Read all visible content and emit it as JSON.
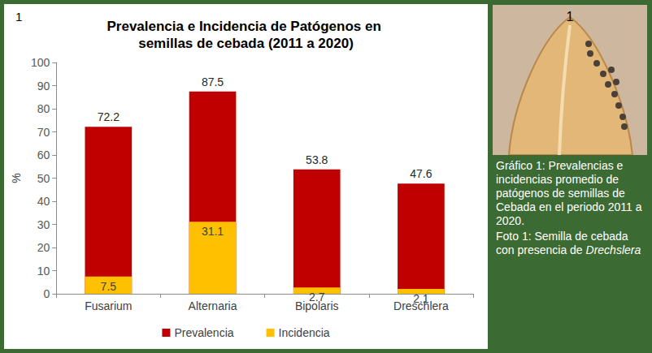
{
  "chart_data": {
    "type": "bar",
    "title": "Prevalencia e Incidencia de Patógenos en semillas de cebada (2011 a 2020)",
    "annotations": [
      "1"
    ],
    "ylabel": "%",
    "categories": [
      "Fusarium",
      "Alternaria",
      "Bipolaris",
      "Dreschlera"
    ],
    "series": [
      {
        "name": "Prevalencia",
        "color": "#c00000",
        "values": [
          72.2,
          87.5,
          53.8,
          47.6
        ]
      },
      {
        "name": "Incidencia",
        "color": "#ffc000",
        "values": [
          7.5,
          31.1,
          2.7,
          2.1
        ]
      }
    ],
    "stacked": false,
    "ylim": [
      0,
      100
    ],
    "yticks": [
      0,
      10,
      20,
      30,
      40,
      50,
      60,
      70,
      80,
      90,
      100
    ],
    "grid": false,
    "legend": "bottom",
    "data_labels": true
  },
  "photo": {
    "label": "1"
  },
  "caption": {
    "graph": "Gráfico 1: Prevalencias e incidencias promedio de patógenos de semillas de Cebada en el periodo 2011 a 2020.",
    "photo": "Foto 1: Semilla de cebada con presencia de",
    "photo_species": "Drechslera"
  }
}
